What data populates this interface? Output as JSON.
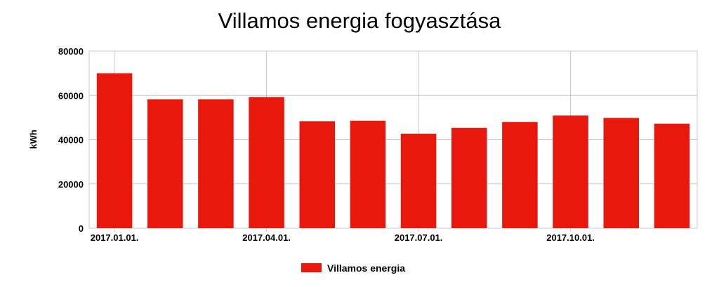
{
  "chart_data": {
    "type": "bar",
    "title": "Villamos energia fogyasztása",
    "xlabel": "",
    "ylabel": "kWh",
    "ylim": [
      0,
      80000
    ],
    "yticks": [
      0,
      20000,
      40000,
      60000,
      80000
    ],
    "x_tick_labels": [
      "2017.01.01.",
      "2017.04.01.",
      "2017.07.01.",
      "2017.10.01."
    ],
    "x_tick_month_index": [
      0,
      3,
      6,
      9
    ],
    "categories": [
      "2017-01",
      "2017-02",
      "2017-03",
      "2017-04",
      "2017-05",
      "2017-06",
      "2017-07",
      "2017-08",
      "2017-09",
      "2017-10",
      "2017-11",
      "2017-12"
    ],
    "series": [
      {
        "name": "Villamos energia",
        "color": "#e8190c",
        "values": [
          70000,
          58200,
          58200,
          59200,
          48300,
          48500,
          42700,
          45300,
          48000,
          50900,
          49800,
          47200
        ]
      }
    ],
    "grid": true,
    "legend": "bottom-center"
  }
}
